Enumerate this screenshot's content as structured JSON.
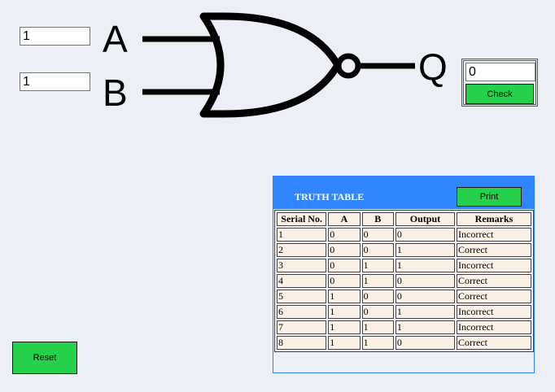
{
  "inputs": {
    "a_value": "1",
    "b_value": "1"
  },
  "gate": {
    "label_a": "A",
    "label_b": "B",
    "label_q": "Q",
    "type_icon": "nor-gate-icon"
  },
  "output": {
    "q_value": "0",
    "check_label": "Check"
  },
  "reset_label": "Reset",
  "truth_table": {
    "title": "TRUTH TABLE",
    "print_label": "Print",
    "headers": [
      "Serial No.",
      "A",
      "B",
      "Output",
      "Remarks"
    ],
    "rows": [
      [
        "1",
        "0",
        "0",
        "0",
        "Incorrect"
      ],
      [
        "2",
        "0",
        "0",
        "1",
        "Correct"
      ],
      [
        "3",
        "0",
        "1",
        "1",
        "Incorrect"
      ],
      [
        "4",
        "0",
        "1",
        "0",
        "Correct"
      ],
      [
        "5",
        "1",
        "0",
        "0",
        "Correct"
      ],
      [
        "6",
        "1",
        "0",
        "1",
        "Incorrect"
      ],
      [
        "7",
        "1",
        "1",
        "1",
        "Incorrect"
      ],
      [
        "8",
        "1",
        "1",
        "0",
        "Correct"
      ]
    ]
  },
  "colors": {
    "background": "#eceff5",
    "button_green": "#25d04b",
    "table_header_blue": "#2f86ff",
    "cell_bg": "#fbf0e6"
  }
}
